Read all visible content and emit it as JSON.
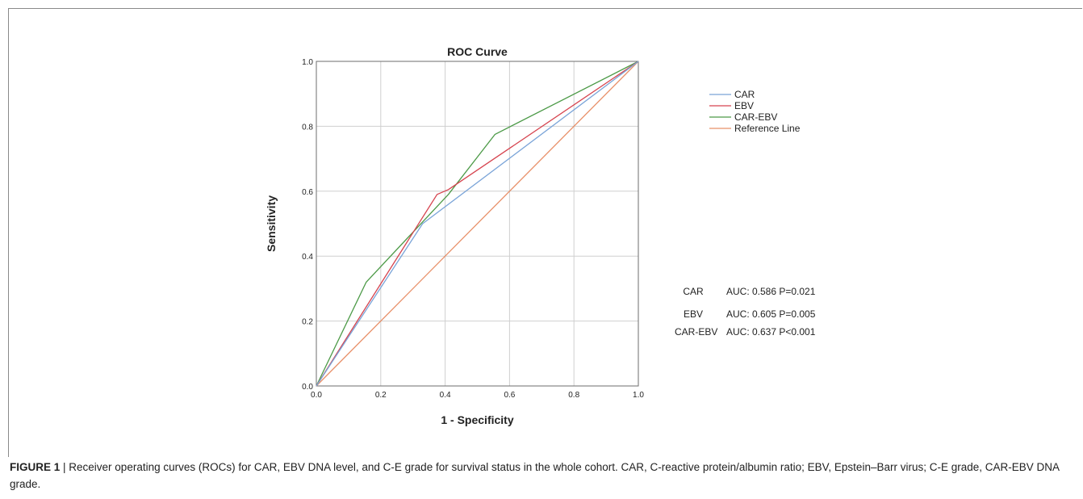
{
  "chart_data": {
    "type": "line",
    "title": "ROC Curve",
    "xlabel": "1 - Specificity",
    "ylabel": "Sensitivity",
    "xlim": [
      0,
      1
    ],
    "ylim": [
      0,
      1
    ],
    "xticks": [
      "0.0",
      "0.2",
      "0.4",
      "0.6",
      "0.8",
      "1.0"
    ],
    "yticks": [
      "0.0",
      "0.2",
      "0.4",
      "0.6",
      "0.8",
      "1.0"
    ],
    "grid": true,
    "legend_position": "right",
    "series": [
      {
        "name": "CAR",
        "color": "#7aa4d8",
        "points": [
          [
            0,
            0
          ],
          [
            0.33,
            0.5
          ],
          [
            1,
            1
          ]
        ]
      },
      {
        "name": "EBV",
        "color": "#d6444f",
        "points": [
          [
            0,
            0
          ],
          [
            0.375,
            0.59
          ],
          [
            0.41,
            0.605
          ],
          [
            1,
            1
          ]
        ]
      },
      {
        "name": "CAR-EBV",
        "color": "#4c9a47",
        "points": [
          [
            0,
            0
          ],
          [
            0.155,
            0.32
          ],
          [
            0.41,
            0.59
          ],
          [
            0.555,
            0.775
          ],
          [
            1,
            1
          ]
        ]
      },
      {
        "name": "Reference Line",
        "color": "#e89069",
        "points": [
          [
            0,
            0
          ],
          [
            1,
            1
          ]
        ]
      }
    ],
    "annotations": [
      {
        "label": "CAR",
        "stat": "AUC: 0.586 P=0.021"
      },
      {
        "label": "EBV",
        "stat": "AUC: 0.605 P=0.005"
      },
      {
        "label": "CAR-EBV",
        "stat": "AUC: 0.637 P<0.001"
      }
    ]
  },
  "caption": {
    "figure_label": "FIGURE 1",
    "separator": " | ",
    "text": "Receiver operating curves (ROCs) for CAR, EBV DNA level, and C-E grade for survival status in the whole cohort. CAR, C-reactive protein/albumin ratio; EBV, Epstein–Barr virus; C-E grade, CAR-EBV DNA grade."
  }
}
